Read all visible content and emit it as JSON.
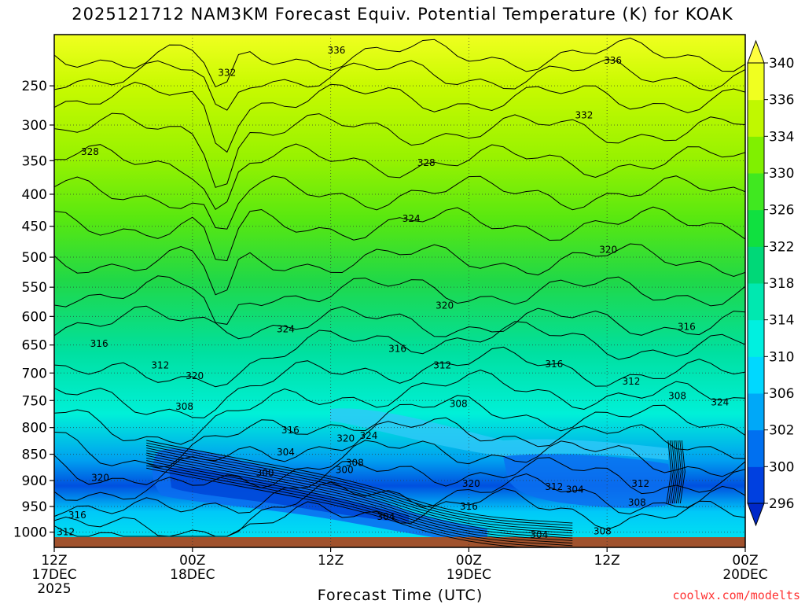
{
  "chart_data": {
    "type": "heatmap",
    "title": "2025121712 NAM3KM Forecast Equiv. Potential Temperature (K) for KOAK",
    "xlabel": "Forecast Time (UTC)",
    "ylabel": "",
    "credit": "coolwx.com/modelts",
    "x_ticks": [
      {
        "hour": 0,
        "line1": "12Z",
        "line2": "17DEC",
        "line3": "2025"
      },
      {
        "hour": 12,
        "line1": "00Z",
        "line2": "18DEC",
        "line3": ""
      },
      {
        "hour": 24,
        "line1": "12Z",
        "line2": "",
        "line3": ""
      },
      {
        "hour": 36,
        "line1": "00Z",
        "line2": "19DEC",
        "line3": ""
      },
      {
        "hour": 48,
        "line1": "12Z",
        "line2": "",
        "line3": ""
      },
      {
        "hour": 60,
        "line1": "00Z",
        "line2": "20DEC",
        "line3": ""
      }
    ],
    "xlim_hours": [
      0,
      60
    ],
    "y_ticks": [
      250,
      300,
      350,
      400,
      450,
      500,
      550,
      600,
      650,
      700,
      750,
      800,
      850,
      900,
      950,
      1000
    ],
    "ylim_hPa": [
      1030,
      200
    ],
    "colorbar": {
      "levels": [
        296,
        300,
        302,
        306,
        310,
        314,
        318,
        322,
        326,
        330,
        334,
        336,
        340
      ],
      "colors": [
        "#0040e0",
        "#0070f0",
        "#00a8f8",
        "#00d8ff",
        "#00f0e0",
        "#00e8b0",
        "#00d878",
        "#10e040",
        "#40e820",
        "#80f000",
        "#c0f800",
        "#f0ff20"
      ]
    },
    "contour_labels": [
      {
        "value": "336",
        "hour": 24.5,
        "hPa": 212
      },
      {
        "value": "336",
        "hour": 48.5,
        "hPa": 222
      },
      {
        "value": "332",
        "hour": 15.0,
        "hPa": 235
      },
      {
        "value": "332",
        "hour": 46.0,
        "hPa": 287
      },
      {
        "value": "328",
        "hour": 3.1,
        "hPa": 337
      },
      {
        "value": "328",
        "hour": 32.3,
        "hPa": 353
      },
      {
        "value": "324",
        "hour": 31.0,
        "hPa": 438
      },
      {
        "value": "324",
        "hour": 20.1,
        "hPa": 622
      },
      {
        "value": "324",
        "hour": 27.3,
        "hPa": 815
      },
      {
        "value": "324",
        "hour": 57.8,
        "hPa": 753
      },
      {
        "value": "320",
        "hour": 48.1,
        "hPa": 488
      },
      {
        "value": "320",
        "hour": 33.9,
        "hPa": 581
      },
      {
        "value": "320",
        "hour": 12.2,
        "hPa": 705
      },
      {
        "value": "320",
        "hour": 25.3,
        "hPa": 820
      },
      {
        "value": "320",
        "hour": 36.2,
        "hPa": 906
      },
      {
        "value": "320",
        "hour": 4.0,
        "hPa": 895
      },
      {
        "value": "316",
        "hour": 3.9,
        "hPa": 648
      },
      {
        "value": "316",
        "hour": 29.8,
        "hPa": 657
      },
      {
        "value": "316",
        "hour": 43.4,
        "hPa": 684
      },
      {
        "value": "316",
        "hour": 54.9,
        "hPa": 618
      },
      {
        "value": "316",
        "hour": 20.5,
        "hPa": 805
      },
      {
        "value": "316",
        "hour": 2.0,
        "hPa": 967
      },
      {
        "value": "316",
        "hour": 36.0,
        "hPa": 950
      },
      {
        "value": "312",
        "hour": 9.2,
        "hPa": 686
      },
      {
        "value": "312",
        "hour": 33.7,
        "hPa": 686
      },
      {
        "value": "312",
        "hour": 50.1,
        "hPa": 715
      },
      {
        "value": "312",
        "hour": 43.4,
        "hPa": 912
      },
      {
        "value": "312",
        "hour": 50.9,
        "hPa": 906
      },
      {
        "value": "312",
        "hour": 1.0,
        "hPa": 1000
      },
      {
        "value": "308",
        "hour": 11.3,
        "hPa": 761
      },
      {
        "value": "308",
        "hour": 35.1,
        "hPa": 756
      },
      {
        "value": "308",
        "hour": 54.1,
        "hPa": 742
      },
      {
        "value": "308",
        "hour": 26.1,
        "hPa": 866
      },
      {
        "value": "308",
        "hour": 50.6,
        "hPa": 942
      },
      {
        "value": "308",
        "hour": 47.6,
        "hPa": 998
      },
      {
        "value": "304",
        "hour": 20.1,
        "hPa": 846
      },
      {
        "value": "304",
        "hour": 45.2,
        "hPa": 917
      },
      {
        "value": "304",
        "hour": 28.8,
        "hPa": 970
      },
      {
        "value": "304",
        "hour": 42.1,
        "hPa": 1005
      },
      {
        "value": "300",
        "hour": 18.3,
        "hPa": 886
      },
      {
        "value": "300",
        "hour": 25.2,
        "hPa": 880
      }
    ]
  }
}
